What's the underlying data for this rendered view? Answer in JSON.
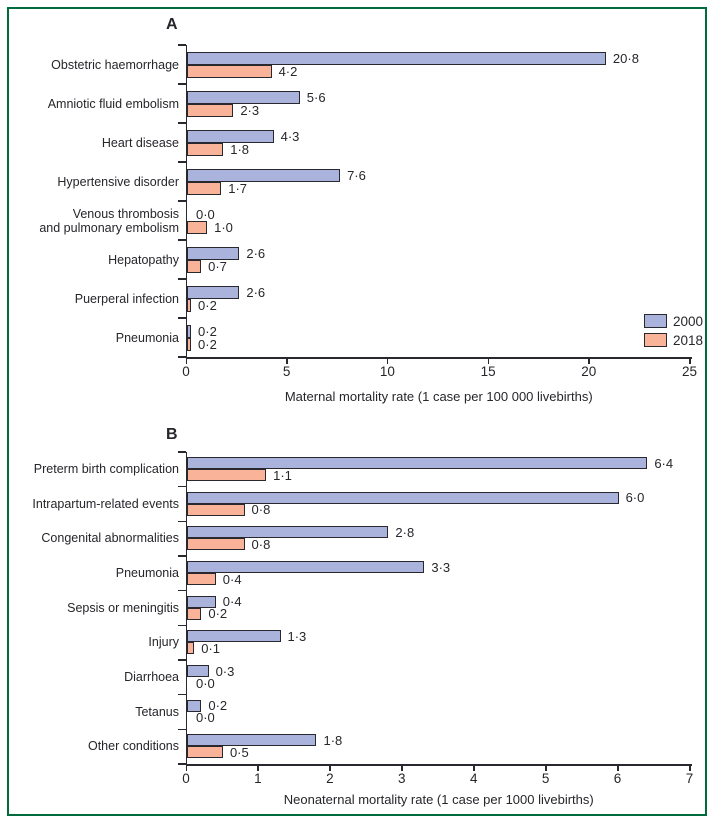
{
  "figure": {
    "border_color": "#006b3c",
    "background_color": "#ffffff",
    "text_color": "#26262b",
    "bar_outline_color": "#28282e"
  },
  "legend": {
    "items": [
      {
        "label": "2000",
        "color": "#a9b3db"
      },
      {
        "label": "2018",
        "color": "#f8b399"
      }
    ]
  },
  "chart_data": [
    {
      "panel_label": "A",
      "type": "bar",
      "orientation": "horizontal",
      "xlabel": "Maternal mortality rate (1 case per 100 000 livebirths)",
      "xlim": [
        0,
        25
      ],
      "xticks": [
        0,
        5,
        10,
        15,
        20,
        25
      ],
      "show_legend": true,
      "legend_position": "right",
      "grid": false,
      "categories": [
        "Obstetric haemorrhage",
        "Amniotic fluid embolism",
        "Heart disease",
        "Hypertensive disorder",
        "Venous thrombosis\nand pulmonary embolism",
        "Hepatopathy",
        "Puerperal infection",
        "Pneumonia"
      ],
      "series": [
        {
          "name": "2000",
          "color": "#a9b3db",
          "values": [
            20.8,
            5.6,
            4.3,
            7.6,
            0.0,
            2.6,
            2.6,
            0.2
          ],
          "labels": [
            "20·8",
            "5·6",
            "4·3",
            "7·6",
            "0·0",
            "2·6",
            "2·6",
            "0·2"
          ]
        },
        {
          "name": "2018",
          "color": "#f8b399",
          "values": [
            4.2,
            2.3,
            1.8,
            1.7,
            1.0,
            0.7,
            0.2,
            0.2
          ],
          "labels": [
            "4·2",
            "2·3",
            "1·8",
            "1·7",
            "1·0",
            "0·7",
            "0·2",
            "0·2"
          ]
        }
      ]
    },
    {
      "panel_label": "B",
      "type": "bar",
      "orientation": "horizontal",
      "xlabel": "Neonaternal mortality rate (1 case per 1000 livebirths)",
      "xlim": [
        0,
        7
      ],
      "xticks": [
        0,
        1,
        2,
        3,
        4,
        5,
        6,
        7
      ],
      "show_legend": false,
      "grid": false,
      "categories": [
        "Preterm birth complication",
        "Intrapartum-related events",
        "Congenital abnormalities",
        "Pneumonia",
        "Sepsis or meningitis",
        "Injury",
        "Diarrhoea",
        "Tetanus",
        "Other conditions"
      ],
      "series": [
        {
          "name": "2000",
          "color": "#a9b3db",
          "values": [
            6.4,
            6.0,
            2.8,
            3.3,
            0.4,
            1.3,
            0.3,
            0.2,
            1.8
          ],
          "labels": [
            "6·4",
            "6·0",
            "2·8",
            "3·3",
            "0·4",
            "1·3",
            "0·3",
            "0·2",
            "1·8"
          ]
        },
        {
          "name": "2018",
          "color": "#f8b399",
          "values": [
            1.1,
            0.8,
            0.8,
            0.4,
            0.2,
            0.1,
            0.0,
            0.0,
            0.5
          ],
          "labels": [
            "1·1",
            "0·8",
            "0·8",
            "0·4",
            "0·2",
            "0·1",
            "0·0",
            "0·0",
            "0·5"
          ]
        }
      ]
    }
  ]
}
